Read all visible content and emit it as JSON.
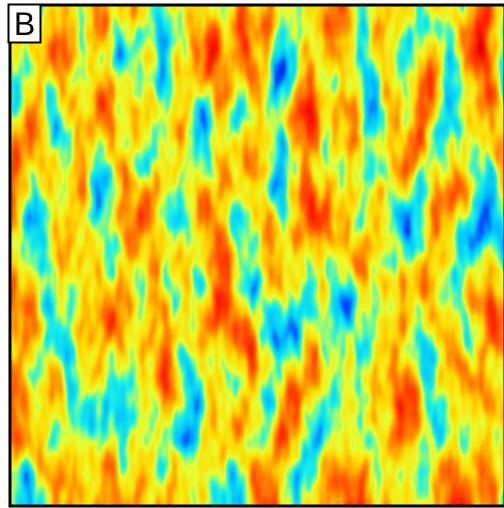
{
  "panel": {
    "label": "B"
  }
}
